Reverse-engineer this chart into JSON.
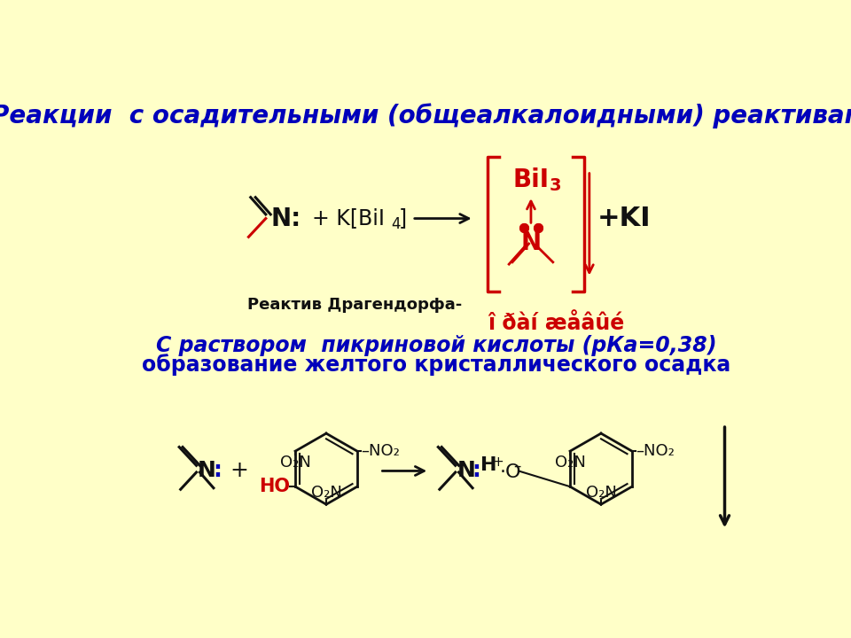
{
  "bg_color": "#FFFFC8",
  "title_text": "Реакции  с осадительными (общеалкалоидными) реактивами",
  "title_color": "#0000CC",
  "title_fontsize": 20,
  "subtitle1": "С раствором  пикриновой кислоты (рКа=0,38)",
  "subtitle2": "образование желтого кристаллического осадка",
  "subtitle_color": "#0000CC",
  "subtitle_fontsize": 17,
  "garbled_text": "î ðàí æåâûé",
  "reactiv_label": "Реактив Драгендорфа-",
  "red_color": "#CC0000",
  "black_color": "#111111",
  "blue_color": "#0000BB"
}
